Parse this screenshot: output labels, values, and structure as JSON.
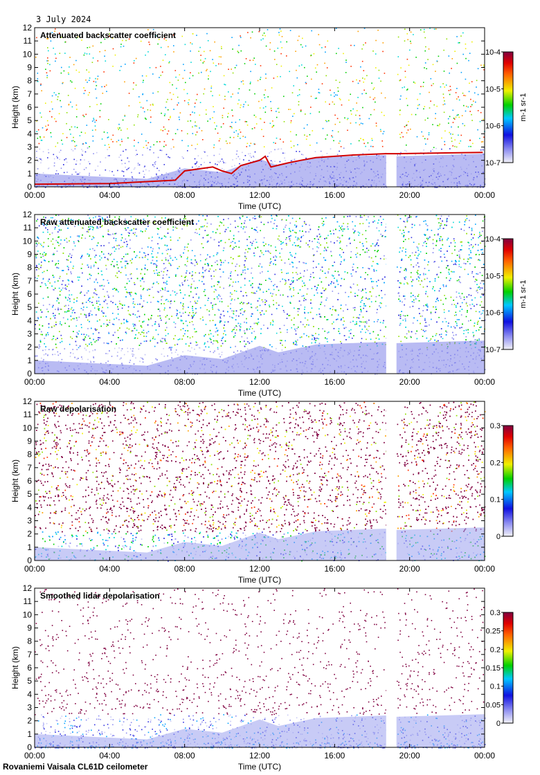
{
  "date_label": "3 July 2024",
  "footer": "Rovaniemi Vaisala CL61D ceilometer",
  "chart_data": [
    {
      "type": "heatmap",
      "title": "Attenuated backscatter coefficient",
      "xlabel": "Time (UTC)",
      "ylabel": "Height (km)",
      "xticks": [
        "00:00",
        "04:00",
        "08:00",
        "12:00",
        "16:00",
        "20:00",
        "00:00"
      ],
      "xlim": [
        0,
        24
      ],
      "ylim": [
        0,
        12
      ],
      "yticks": [
        "0",
        "1",
        "2",
        "3",
        "4",
        "5",
        "6",
        "7",
        "8",
        "9",
        "10",
        "11",
        "12"
      ],
      "colorbar": {
        "scale": "log",
        "min": 1e-07,
        "max": 0.0001,
        "labels": [
          "10-7",
          "10-6",
          "10-5",
          "10-4"
        ],
        "unit": "m-1 sr-1"
      },
      "data_gap_hours": [
        18.75,
        19.3
      ],
      "boundary_layer_top_km": [
        [
          0,
          0.2
        ],
        [
          4,
          0.25
        ],
        [
          7.5,
          0.5
        ],
        [
          8,
          1.2
        ],
        [
          9.5,
          1.5
        ],
        [
          10,
          1.2
        ],
        [
          10.5,
          1.0
        ],
        [
          11,
          1.6
        ],
        [
          12,
          2.0
        ],
        [
          12.3,
          2.3
        ],
        [
          12.6,
          1.5
        ],
        [
          13.5,
          1.8
        ],
        [
          14.2,
          2.0
        ],
        [
          15,
          2.2
        ],
        [
          16,
          2.3
        ],
        [
          17,
          2.4
        ],
        [
          18.7,
          2.5
        ],
        [
          19.3,
          2.5
        ],
        [
          23.9,
          2.6
        ]
      ]
    },
    {
      "type": "heatmap",
      "title": "Raw attenuated backscatter coefficient",
      "xlabel": "Time (UTC)",
      "ylabel": "Height (km)",
      "xticks": [
        "00:00",
        "04:00",
        "08:00",
        "12:00",
        "16:00",
        "20:00",
        "00:00"
      ],
      "xlim": [
        0,
        24
      ],
      "ylim": [
        0,
        12
      ],
      "yticks": [
        "0",
        "1",
        "2",
        "3",
        "4",
        "5",
        "6",
        "7",
        "8",
        "9",
        "10",
        "11",
        "12"
      ],
      "colorbar": {
        "scale": "log",
        "min": 1e-07,
        "max": 0.0001,
        "labels": [
          "10-7",
          "10-6",
          "10-5",
          "10-4"
        ],
        "unit": "m-1 sr-1"
      },
      "data_gap_hours": [
        18.75,
        19.3
      ]
    },
    {
      "type": "heatmap",
      "title": "Raw depolarisation",
      "xlabel": "Time (UTC)",
      "ylabel": "Height (km)",
      "xticks": [
        "00:00",
        "04:00",
        "08:00",
        "12:00",
        "16:00",
        "20:00",
        "00:00"
      ],
      "xlim": [
        0,
        24
      ],
      "ylim": [
        0,
        12
      ],
      "yticks": [
        "0",
        "1",
        "2",
        "3",
        "4",
        "5",
        "6",
        "7",
        "8",
        "9",
        "10",
        "11",
        "12"
      ],
      "colorbar": {
        "scale": "linear",
        "min": 0,
        "max": 0.3,
        "labels": [
          "0",
          "0.1",
          "0.2",
          "0.3"
        ],
        "unit": ""
      },
      "data_gap_hours": [
        18.75,
        19.3
      ]
    },
    {
      "type": "heatmap",
      "title": "Smoothed lidar depolarisation",
      "xlabel": "Time (UTC)",
      "ylabel": "Height (km)",
      "xticks": [
        "00:00",
        "04:00",
        "08:00",
        "12:00",
        "16:00",
        "20:00",
        "00:00"
      ],
      "xlim": [
        0,
        24
      ],
      "ylim": [
        0,
        12
      ],
      "yticks": [
        "0",
        "1",
        "2",
        "3",
        "4",
        "5",
        "6",
        "7",
        "8",
        "9",
        "10",
        "11",
        "12"
      ],
      "colorbar": {
        "scale": "linear",
        "min": 0,
        "max": 0.3,
        "labels": [
          "0",
          "0.05",
          "0.1",
          "0.15",
          "0.2",
          "0.25",
          "0.3"
        ],
        "unit": ""
      },
      "data_gap_hours": [
        18.75,
        19.3
      ]
    }
  ]
}
